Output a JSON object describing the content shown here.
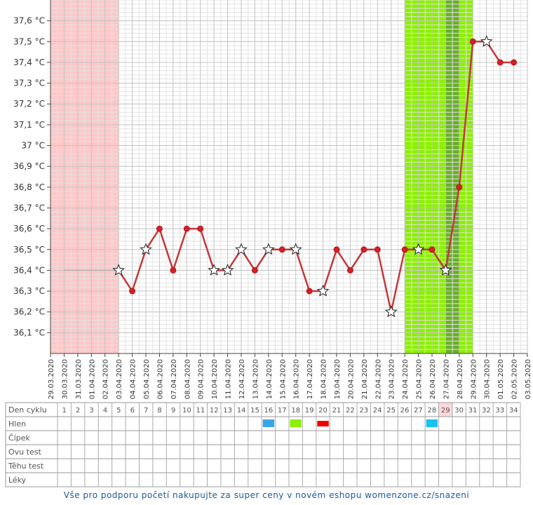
{
  "chart_data": {
    "type": "line",
    "title": "",
    "xlabel": "",
    "ylabel": "",
    "y_unit": "°C",
    "ylim": [
      36.0,
      37.7
    ],
    "y_ticks": [
      "36,1 °C",
      "36,2 °C",
      "36,3 °C",
      "36,4 °C",
      "36,5 °C",
      "36,6 °C",
      "36,7 °C",
      "36,8 °C",
      "36,9 °C",
      "37 °C",
      "37,1 °C",
      "37,2 °C",
      "37,3 °C",
      "37,4 °C",
      "37,5 °C",
      "37,6 °C"
    ],
    "y_tick_values": [
      36.1,
      36.2,
      36.3,
      36.4,
      36.5,
      36.6,
      36.7,
      36.8,
      36.9,
      37.0,
      37.1,
      37.2,
      37.3,
      37.4,
      37.5,
      37.6
    ],
    "x_dates": [
      "29.03.2020",
      "30.03.2020",
      "31.03.2020",
      "01.04.2020",
      "02.04.2020",
      "03.04.2020",
      "04.04.2020",
      "05.04.2020",
      "06.04.2020",
      "07.04.2020",
      "08.04.2020",
      "09.04.2020",
      "10.04.2020",
      "11.04.2020",
      "12.04.2020",
      "13.04.2020",
      "14.04.2020",
      "15.04.2020",
      "16.04.2020",
      "17.04.2020",
      "18.04.2020",
      "19.04.2020",
      "20.04.2020",
      "21.04.2020",
      "22.04.2020",
      "23.04.2020",
      "24.04.2020",
      "25.04.2020",
      "26.04.2020",
      "27.04.2020",
      "28.04.2020",
      "29.04.2020",
      "30.04.2020",
      "01.05.2020",
      "02.05.2020",
      "03.05.2020"
    ],
    "cycle_days": [
      1,
      2,
      3,
      4,
      5,
      6,
      7,
      8,
      9,
      10,
      11,
      12,
      13,
      14,
      15,
      16,
      17,
      18,
      19,
      20,
      21,
      22,
      23,
      24,
      25,
      26,
      27,
      28,
      29,
      30,
      31,
      32,
      33,
      34
    ],
    "temperatures": [
      {
        "date": "03.04.2020",
        "value": 36.4,
        "marker": "star"
      },
      {
        "date": "04.04.2020",
        "value": 36.3,
        "marker": "dot"
      },
      {
        "date": "05.04.2020",
        "value": 36.5,
        "marker": "star"
      },
      {
        "date": "06.04.2020",
        "value": 36.6,
        "marker": "dot"
      },
      {
        "date": "07.04.2020",
        "value": 36.4,
        "marker": "dot"
      },
      {
        "date": "08.04.2020",
        "value": 36.6,
        "marker": "dot"
      },
      {
        "date": "09.04.2020",
        "value": 36.6,
        "marker": "dot"
      },
      {
        "date": "10.04.2020",
        "value": 36.4,
        "marker": "star"
      },
      {
        "date": "11.04.2020",
        "value": 36.4,
        "marker": "star"
      },
      {
        "date": "12.04.2020",
        "value": 36.5,
        "marker": "star"
      },
      {
        "date": "13.04.2020",
        "value": 36.4,
        "marker": "dot"
      },
      {
        "date": "14.04.2020",
        "value": 36.5,
        "marker": "star"
      },
      {
        "date": "15.04.2020",
        "value": 36.5,
        "marker": "dot"
      },
      {
        "date": "16.04.2020",
        "value": 36.5,
        "marker": "star"
      },
      {
        "date": "17.04.2020",
        "value": 36.3,
        "marker": "dot"
      },
      {
        "date": "18.04.2020",
        "value": 36.3,
        "marker": "star"
      },
      {
        "date": "19.04.2020",
        "value": 36.5,
        "marker": "dot"
      },
      {
        "date": "20.04.2020",
        "value": 36.4,
        "marker": "dot"
      },
      {
        "date": "21.04.2020",
        "value": 36.5,
        "marker": "dot"
      },
      {
        "date": "22.04.2020",
        "value": 36.5,
        "marker": "dot"
      },
      {
        "date": "23.04.2020",
        "value": 36.2,
        "marker": "star"
      },
      {
        "date": "24.04.2020",
        "value": 36.5,
        "marker": "dot"
      },
      {
        "date": "25.04.2020",
        "value": 36.5,
        "marker": "star"
      },
      {
        "date": "26.04.2020",
        "value": 36.5,
        "marker": "dot"
      },
      {
        "date": "27.04.2020",
        "value": 36.4,
        "marker": "star"
      },
      {
        "date": "28.04.2020",
        "value": 36.8,
        "marker": "dot"
      },
      {
        "date": "29.04.2020",
        "value": 37.5,
        "marker": "dot"
      },
      {
        "date": "30.04.2020",
        "value": 37.5,
        "marker": "star"
      },
      {
        "date": "01.05.2020",
        "value": 37.4,
        "marker": "dot"
      },
      {
        "date": "02.05.2020",
        "value": 37.4,
        "marker": "dot"
      }
    ],
    "baseline": {
      "from": "30.03.2020",
      "to": "03.04.2020",
      "value": 36.4
    },
    "bands": [
      {
        "kind": "period",
        "from_index": 0,
        "to_index": 5,
        "color": "#ffc8c8"
      },
      {
        "kind": "fertile",
        "from_index": 26,
        "to_index": 31,
        "color": "#8cf000"
      },
      {
        "kind": "ovulation",
        "from_index": 29,
        "to_index": 30,
        "color": "#6ab02a"
      }
    ],
    "line_color": "#c0393b",
    "highlight_day": 29,
    "table_rows": [
      "Den cyklu",
      "Hlen",
      "Čípek",
      "Ovu test",
      "Těhu test",
      "Léky"
    ],
    "mucus": [
      {
        "day": 16,
        "color": "#3aa6e6"
      },
      {
        "day": 18,
        "color": "#8cf000"
      },
      {
        "day": 20,
        "color": "#ee0000"
      },
      {
        "day": 28,
        "color": "#19c3f0"
      }
    ]
  },
  "footer": "Vše pro podporu početí nakupujte za super ceny v novém eshopu womenzone.cz/snazeni"
}
